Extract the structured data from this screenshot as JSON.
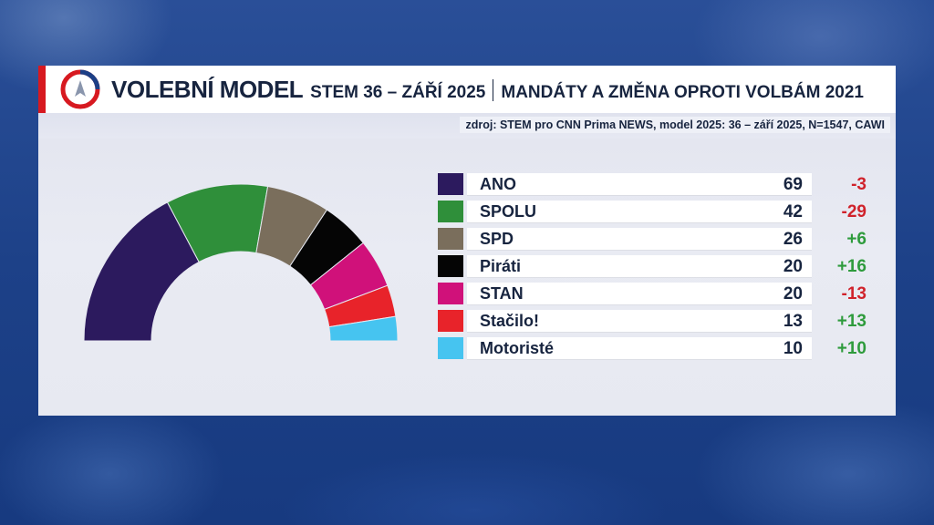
{
  "header": {
    "title": "VOLEBNÍ MODEL",
    "subtitle": "STEM 36 – ZÁŘÍ 2025",
    "description": "MANDÁTY A ZMĚNA OPROTI VOLBÁM 2021"
  },
  "source": "zdroj: STEM pro CNN Prima NEWS, model 2025: 36 – září 2025, N=1547, CAWI",
  "colors": {
    "accent_red": "#d71920",
    "text_dark": "#17243f",
    "positive": "#2e9b3c",
    "negative": "#d0222b"
  },
  "chart_data": {
    "type": "parliament-semicircle",
    "total_seats": 200,
    "parties": [
      {
        "name": "ANO",
        "seats": 69,
        "change": "-3",
        "color": "#2c1a5e"
      },
      {
        "name": "SPOLU",
        "seats": 42,
        "change": "-29",
        "color": "#2f8f3a"
      },
      {
        "name": "SPD",
        "seats": 26,
        "change": "+6",
        "color": "#7a6e5c"
      },
      {
        "name": "Piráti",
        "seats": 20,
        "change": "+16",
        "color": "#050505"
      },
      {
        "name": "STAN",
        "seats": 20,
        "change": "-13",
        "color": "#d0117a"
      },
      {
        "name": "Stačilo!",
        "seats": 13,
        "change": "+13",
        "color": "#e8232a"
      },
      {
        "name": "Motoristé",
        "seats": 10,
        "change": "+10",
        "color": "#46c4f0"
      }
    ]
  }
}
